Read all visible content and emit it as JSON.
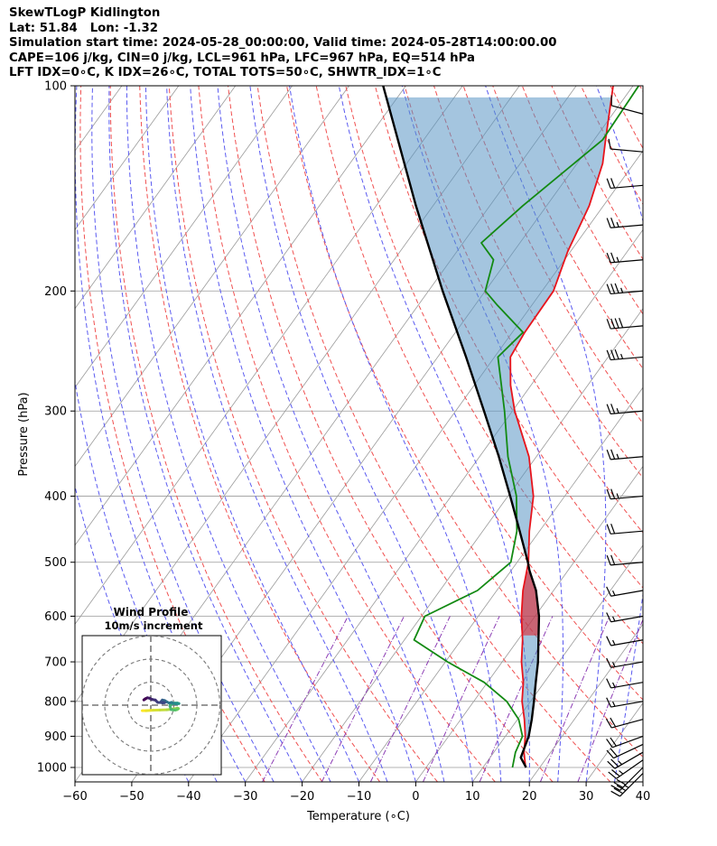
{
  "header": {
    "lines": [
      "SkewTLogP Kidlington",
      "Lat: 51.84   Lon: -1.32",
      "Simulation start time: 2024-05-28_00:00:00, Valid time: 2024-05-28T14:00:00.00",
      "CAPE=106 j/kg, CIN=0 j/kg, LCL=961 hPa, LFC=967 hPa, EQ=514 hPa",
      "LFT IDX=0∘C, K IDX=26∘C, TOTAL TOTS=50∘C, SHWTR_IDX=1∘C"
    ]
  },
  "chart_data": {
    "type": "skewt",
    "xlabel": "Temperature (∘C)",
    "ylabel": "Pressure (hPa)",
    "xlim": [
      -60,
      40
    ],
    "ylim": [
      1050,
      100
    ],
    "x_ticks": [
      -60,
      -50,
      -40,
      -30,
      -20,
      -10,
      0,
      10,
      20,
      30,
      40
    ],
    "x_tick_labels": [
      "−60",
      "−50",
      "−40",
      "−30",
      "−20",
      "−10",
      "0",
      "10",
      "20",
      "30",
      "40"
    ],
    "y_ticks": [
      1000,
      900,
      800,
      700,
      600,
      500,
      400,
      300,
      200,
      100
    ],
    "y_tick_labels": [
      "1000",
      "900",
      "800",
      "700",
      "600",
      "500",
      "400",
      "300",
      "200",
      "100"
    ],
    "grid": true,
    "colors": {
      "temperature": "#e8141c",
      "dewpoint": "#138a13",
      "parcel": "#000000",
      "cape_fill": "#5a95c4",
      "cin_fill": "#e8141c",
      "isotherm": "#9a9a9a",
      "dry_adiabat": "#f05050",
      "moist_adiabat": "#5a5af0",
      "mixing_ratio": "#8c3cb4"
    },
    "series": [
      {
        "key": "temperature",
        "points": [
          [
            1000,
            17.5
          ],
          [
            950,
            15.3
          ],
          [
            900,
            13.5
          ],
          [
            850,
            11.2
          ],
          [
            800,
            8.5
          ],
          [
            750,
            6.3
          ],
          [
            700,
            3.4
          ],
          [
            650,
            0.8
          ],
          [
            600,
            -2.4
          ],
          [
            550,
            -5.4
          ],
          [
            500,
            -8.0
          ],
          [
            450,
            -11.8
          ],
          [
            400,
            -15.5
          ],
          [
            350,
            -21.3
          ],
          [
            300,
            -29.6
          ],
          [
            275,
            -33.6
          ],
          [
            250,
            -37.2
          ],
          [
            230,
            -37.8
          ],
          [
            200,
            -38.0
          ],
          [
            175,
            -40.5
          ],
          [
            150,
            -42.5
          ],
          [
            130,
            -45.5
          ],
          [
            120,
            -48.0
          ],
          [
            100,
            -53.5
          ]
        ]
      },
      {
        "key": "dewpoint",
        "points": [
          [
            1000,
            15.2
          ],
          [
            950,
            13.8
          ],
          [
            900,
            13.0
          ],
          [
            850,
            10.2
          ],
          [
            800,
            5.8
          ],
          [
            750,
            -0.6
          ],
          [
            700,
            -9.6
          ],
          [
            650,
            -18.3
          ],
          [
            600,
            -19.4
          ],
          [
            550,
            -13.4
          ],
          [
            500,
            -11.1
          ],
          [
            450,
            -14.0
          ],
          [
            400,
            -18.5
          ],
          [
            350,
            -25.0
          ],
          [
            300,
            -31.4
          ],
          [
            250,
            -39.4
          ],
          [
            230,
            -38.1
          ],
          [
            210,
            -46.0
          ],
          [
            200,
            -50.0
          ],
          [
            180,
            -52.5
          ],
          [
            170,
            -56.8
          ],
          [
            150,
            -54.2
          ],
          [
            120,
            -48.5
          ],
          [
            100,
            -49.0
          ]
        ]
      },
      {
        "key": "parcel",
        "points": [
          [
            1000,
            17.6
          ],
          [
            967,
            15.4
          ],
          [
            900,
            14.1
          ],
          [
            850,
            12.5
          ],
          [
            800,
            10.6
          ],
          [
            750,
            8.5
          ],
          [
            700,
            6.3
          ],
          [
            650,
            3.6
          ],
          [
            600,
            0.7
          ],
          [
            550,
            -3.1
          ],
          [
            514,
            -6.8
          ],
          [
            500,
            -8.1
          ],
          [
            450,
            -13.5
          ],
          [
            400,
            -19.6
          ],
          [
            350,
            -26.6
          ],
          [
            300,
            -35.0
          ],
          [
            250,
            -45.0
          ],
          [
            200,
            -57.5
          ],
          [
            150,
            -73.0
          ],
          [
            100,
            -94.0
          ]
        ]
      }
    ],
    "wind_barbs": [
      {
        "p": 1020,
        "speed": 35,
        "dir": 225
      },
      {
        "p": 1000,
        "speed": 30,
        "dir": 225
      },
      {
        "p": 975,
        "speed": 25,
        "dir": 235
      },
      {
        "p": 950,
        "speed": 25,
        "dir": 240
      },
      {
        "p": 925,
        "speed": 20,
        "dir": 245
      },
      {
        "p": 900,
        "speed": 20,
        "dir": 250
      },
      {
        "p": 850,
        "speed": 20,
        "dir": 255
      },
      {
        "p": 800,
        "speed": 15,
        "dir": 260
      },
      {
        "p": 750,
        "speed": 15,
        "dir": 260
      },
      {
        "p": 700,
        "speed": 15,
        "dir": 260
      },
      {
        "p": 650,
        "speed": 15,
        "dir": 260
      },
      {
        "p": 600,
        "speed": 15,
        "dir": 260
      },
      {
        "p": 550,
        "speed": 15,
        "dir": 260
      },
      {
        "p": 500,
        "speed": 20,
        "dir": 265
      },
      {
        "p": 450,
        "speed": 20,
        "dir": 265
      },
      {
        "p": 400,
        "speed": 25,
        "dir": 265
      },
      {
        "p": 350,
        "speed": 25,
        "dir": 265
      },
      {
        "p": 300,
        "speed": 25,
        "dir": 265
      },
      {
        "p": 250,
        "speed": 35,
        "dir": 265
      },
      {
        "p": 225,
        "speed": 40,
        "dir": 265
      },
      {
        "p": 200,
        "speed": 35,
        "dir": 265
      },
      {
        "p": 180,
        "speed": 25,
        "dir": 265
      },
      {
        "p": 160,
        "speed": 25,
        "dir": 265
      },
      {
        "p": 140,
        "speed": 20,
        "dir": 265
      },
      {
        "p": 125,
        "speed": 10,
        "dir": 275
      },
      {
        "p": 110,
        "speed": 10,
        "dir": 285
      }
    ],
    "hodograph": {
      "title": "Wind Profile",
      "subtitle": "10m/s increment",
      "rings": [
        10,
        20,
        30
      ],
      "points": [
        [
          -3.7,
          -2.4
        ],
        [
          -2.0,
          -2.4
        ],
        [
          1.0,
          -2.2
        ],
        [
          4.0,
          -2.1
        ],
        [
          7.0,
          -2.0
        ],
        [
          9.5,
          -1.7
        ],
        [
          11.5,
          -1.3
        ],
        [
          12.0,
          -1.5
        ],
        [
          11.5,
          -1.9
        ],
        [
          10.8,
          -2.1
        ],
        [
          10.0,
          -2.1
        ],
        [
          8.8,
          -1.9
        ],
        [
          8.3,
          -0.3
        ],
        [
          9.0,
          0.5
        ],
        [
          10.5,
          0.9
        ],
        [
          11.5,
          0.9
        ],
        [
          12.2,
          0.7
        ],
        [
          11.0,
          0.6
        ],
        [
          9.5,
          0.9
        ],
        [
          9.0,
          1.2
        ],
        [
          8.0,
          0.9
        ],
        [
          7.0,
          1.4
        ],
        [
          6.0,
          2.0
        ],
        [
          5.0,
          2.2
        ],
        [
          4.5,
          1.6
        ],
        [
          5.0,
          1.0
        ],
        [
          6.0,
          1.1
        ],
        [
          3.0,
          1.2
        ],
        [
          2.0,
          2.2
        ],
        [
          0.5,
          2.5
        ],
        [
          -0.5,
          3.0
        ],
        [
          -1.5,
          3.2
        ],
        [
          -2.5,
          2.7
        ],
        [
          -3.0,
          2.3
        ],
        [
          -2.2,
          2.8
        ]
      ]
    }
  }
}
